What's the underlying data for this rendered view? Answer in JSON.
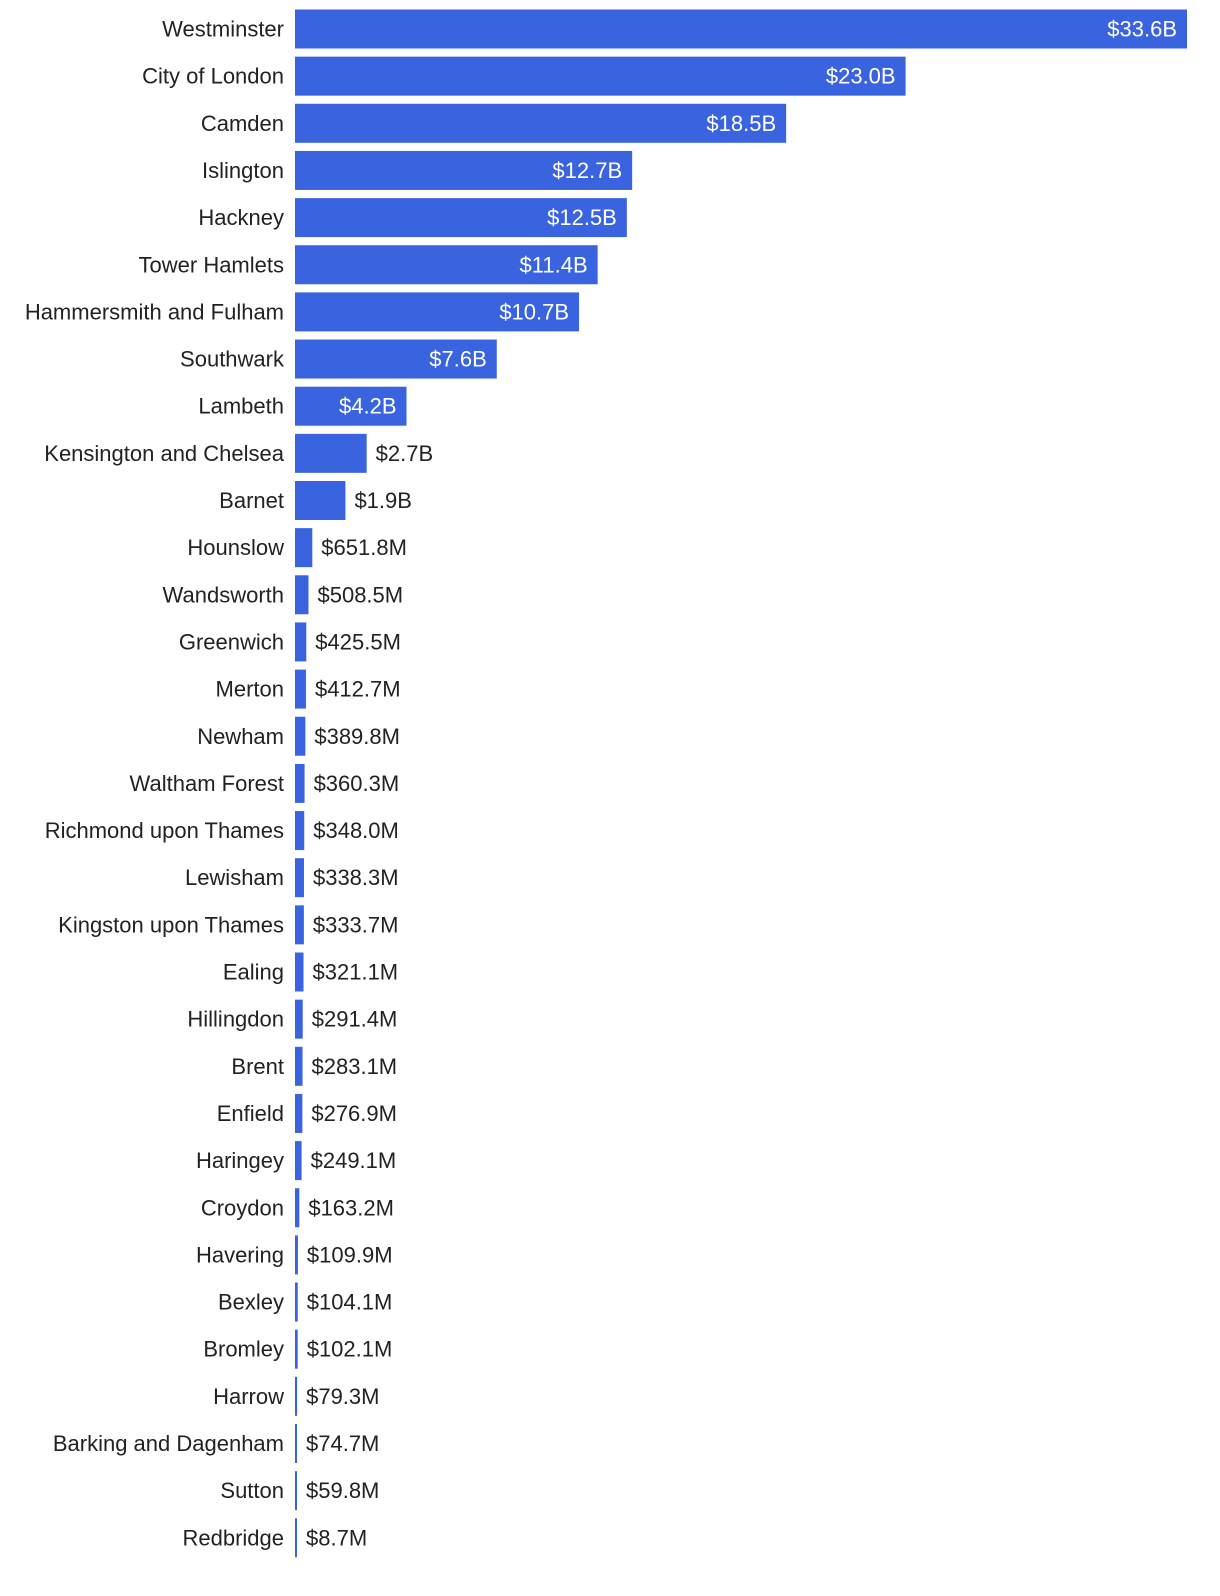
{
  "chart_data": {
    "type": "bar",
    "orientation": "horizontal",
    "title": "",
    "xlabel": "",
    "ylabel": "",
    "grid": false,
    "bar_color": "#3a63e0",
    "xlim": [
      0,
      33.6
    ],
    "units": "billion USD",
    "categories": [
      "Westminster",
      "City of London",
      "Camden",
      "Islington",
      "Hackney",
      "Tower Hamlets",
      "Hammersmith and Fulham",
      "Southwark",
      "Lambeth",
      "Kensington and Chelsea",
      "Barnet",
      "Hounslow",
      "Wandsworth",
      "Greenwich",
      "Merton",
      "Newham",
      "Waltham Forest",
      "Richmond upon Thames",
      "Lewisham",
      "Kingston upon Thames",
      "Ealing",
      "Hillingdon",
      "Brent",
      "Enfield",
      "Haringey",
      "Croydon",
      "Havering",
      "Bexley",
      "Bromley",
      "Harrow",
      "Barking and Dagenham",
      "Sutton",
      "Redbridge"
    ],
    "values": [
      33.6,
      23.0,
      18.5,
      12.7,
      12.5,
      11.4,
      10.7,
      7.6,
      4.2,
      2.7,
      1.9,
      0.6518,
      0.5085,
      0.4255,
      0.4127,
      0.3898,
      0.3603,
      0.348,
      0.3383,
      0.3337,
      0.3211,
      0.2914,
      0.2831,
      0.2769,
      0.2491,
      0.1632,
      0.1099,
      0.1041,
      0.1021,
      0.0793,
      0.0747,
      0.0598,
      0.0087
    ],
    "labels": [
      "$33.6B",
      "$23.0B",
      "$18.5B",
      "$12.7B",
      "$12.5B",
      "$11.4B",
      "$10.7B",
      "$7.6B",
      "$4.2B",
      "$2.7B",
      "$1.9B",
      "$651.8M",
      "$508.5M",
      "$425.5M",
      "$412.7M",
      "$389.8M",
      "$360.3M",
      "$348.0M",
      "$338.3M",
      "$333.7M",
      "$321.1M",
      "$291.4M",
      "$283.1M",
      "$276.9M",
      "$249.1M",
      "$163.2M",
      "$109.9M",
      "$104.1M",
      "$102.1M",
      "$79.3M",
      "$74.7M",
      "$59.8M",
      "$8.7M"
    ]
  }
}
